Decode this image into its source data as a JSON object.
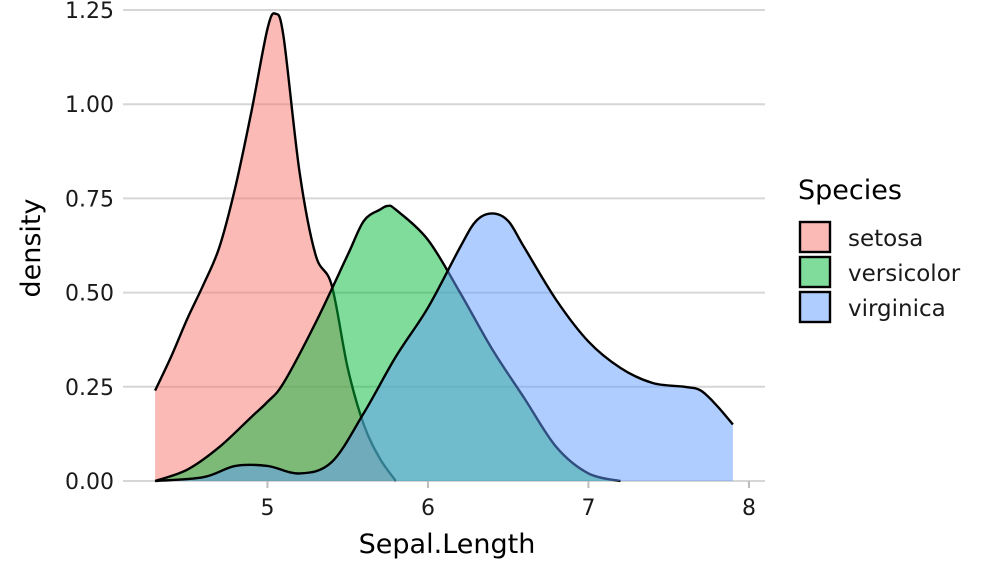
{
  "chart_data": {
    "type": "area",
    "subtype": "density",
    "xlabel": "Sepal.Length",
    "ylabel": "density",
    "xlim": [
      4.1,
      8.1
    ],
    "ylim": [
      0,
      1.25
    ],
    "x_ticks": [
      5,
      6,
      7,
      8
    ],
    "x_tick_labels": [
      "5",
      "6",
      "7",
      "8"
    ],
    "y_ticks": [
      0,
      0.25,
      0.5,
      0.75,
      1.0,
      1.25
    ],
    "y_tick_labels": [
      "0.00",
      "0.25",
      "0.50",
      "0.75",
      "1.00",
      "1.25"
    ],
    "grid": "horizontal",
    "legend": {
      "title": "Species",
      "position": "right"
    },
    "series": [
      {
        "name": "setosa",
        "color": "#F8766D",
        "x": [
          4.3,
          4.4,
          4.5,
          4.6,
          4.7,
          4.8,
          4.9,
          5.0,
          5.05,
          5.1,
          5.2,
          5.3,
          5.4,
          5.5,
          5.6,
          5.7,
          5.8
        ],
        "y": [
          0.24,
          0.33,
          0.43,
          0.52,
          0.62,
          0.78,
          0.98,
          1.2,
          1.24,
          1.18,
          0.82,
          0.6,
          0.52,
          0.3,
          0.15,
          0.06,
          0.0
        ]
      },
      {
        "name": "versicolor",
        "color": "#00BA38",
        "x": [
          4.3,
          4.5,
          4.7,
          4.9,
          5.0,
          5.1,
          5.3,
          5.5,
          5.6,
          5.7,
          5.75,
          5.8,
          6.0,
          6.2,
          6.4,
          6.6,
          6.8,
          7.0,
          7.2
        ],
        "y": [
          0.0,
          0.03,
          0.09,
          0.17,
          0.21,
          0.26,
          0.42,
          0.6,
          0.69,
          0.72,
          0.73,
          0.72,
          0.64,
          0.5,
          0.35,
          0.22,
          0.09,
          0.02,
          0.0
        ]
      },
      {
        "name": "virginica",
        "color": "#619CFF",
        "x": [
          4.3,
          4.6,
          4.8,
          5.0,
          5.2,
          5.4,
          5.6,
          5.8,
          6.0,
          6.2,
          6.3,
          6.4,
          6.5,
          6.6,
          6.8,
          7.0,
          7.2,
          7.4,
          7.6,
          7.7,
          7.8,
          7.9
        ],
        "y": [
          0.0,
          0.01,
          0.04,
          0.04,
          0.02,
          0.05,
          0.18,
          0.33,
          0.46,
          0.62,
          0.69,
          0.71,
          0.69,
          0.62,
          0.48,
          0.37,
          0.3,
          0.26,
          0.25,
          0.24,
          0.2,
          0.15
        ]
      }
    ]
  }
}
